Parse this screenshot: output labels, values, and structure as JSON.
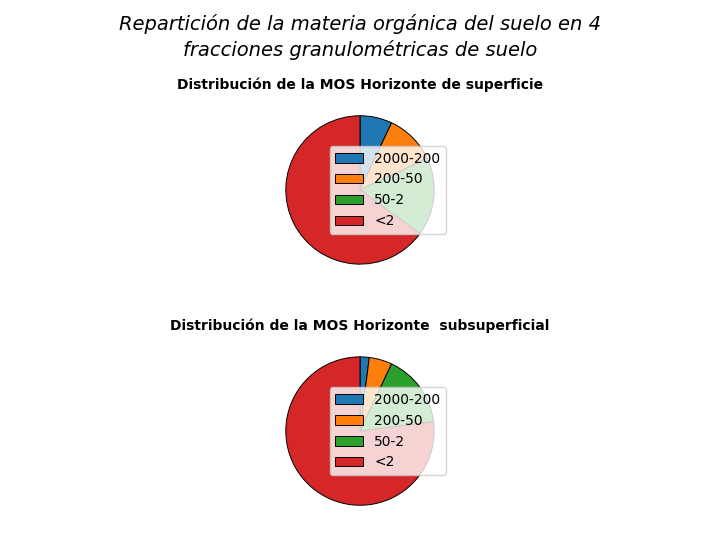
{
  "title": "Repartición de la materia orgánica del suelo en 4",
  "subtitle": "fracciones granulométricas de suelo",
  "chart_data": [
    {
      "type": "pie",
      "title": "Distribución de la MOS Horizonte de superficie",
      "categories": [
        "2000-200",
        "200-50",
        "50-2",
        "<2"
      ],
      "values": [
        7,
        11,
        17,
        65
      ],
      "legend": "center right"
    },
    {
      "type": "pie",
      "title": "Distribución de la MOS Horizonte  subsuperficial",
      "categories": [
        "2000-200",
        "200-50",
        "50-2",
        "<2"
      ],
      "values": [
        2,
        5,
        16,
        77
      ],
      "legend": "center right"
    }
  ]
}
